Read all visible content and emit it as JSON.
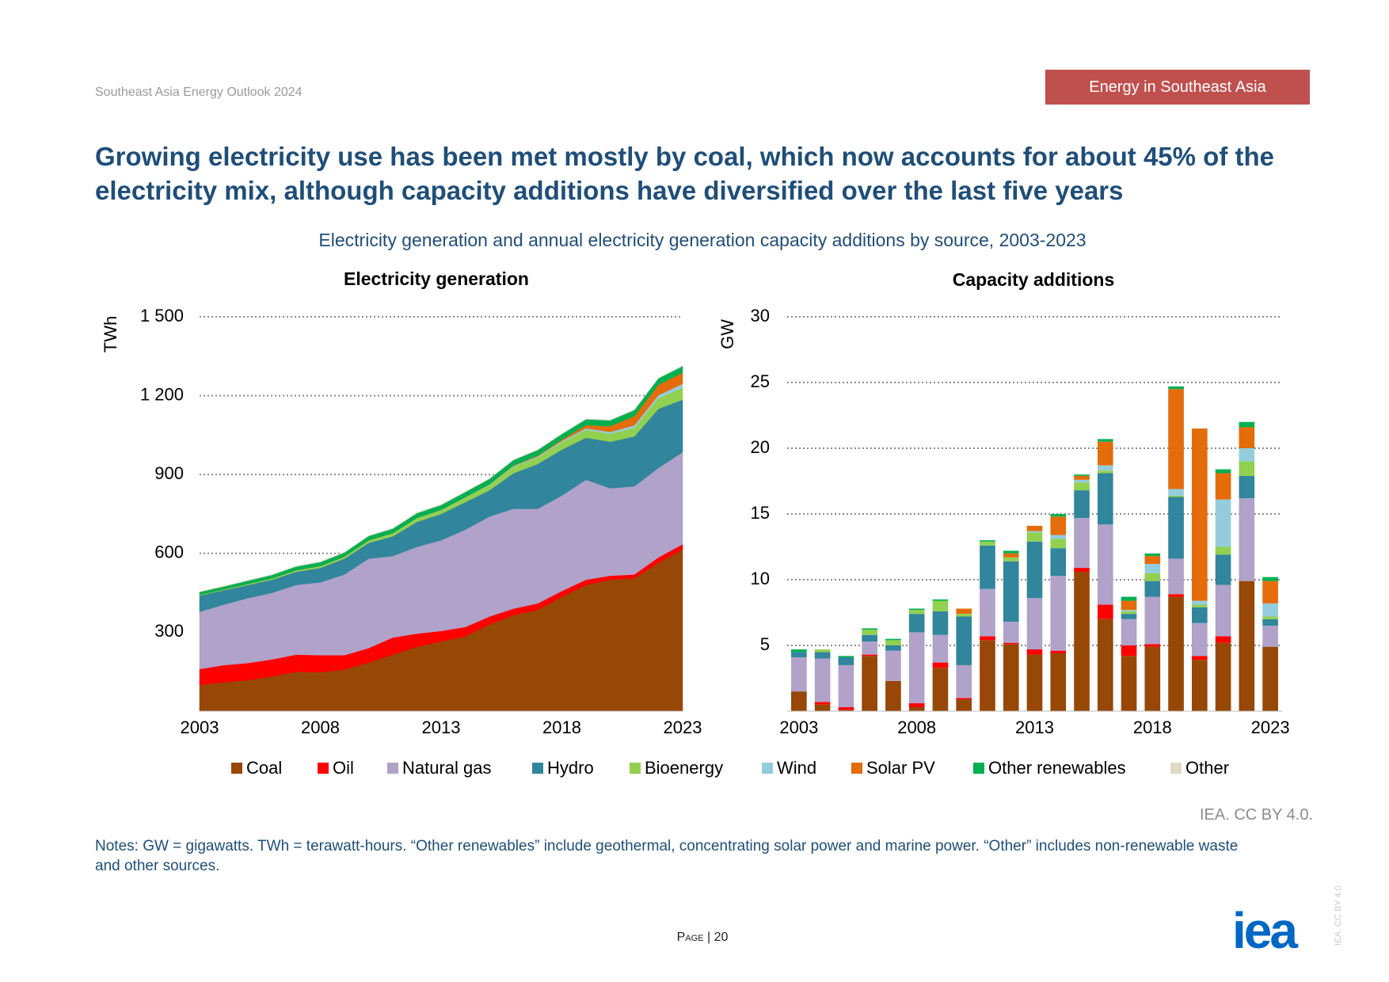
{
  "header": "Southeast Asia Energy Outlook 2024",
  "badge": "Energy in Southeast Asia",
  "title": "Growing electricity use has been met mostly by coal, which now accounts for about 45% of the electricity mix, although capacity additions have diversified over the last five years",
  "subtitle": "Electricity generation and annual electricity generation capacity additions by source, 2003-2023",
  "credit": "IEA. CC BY 4.0.",
  "notes": "Notes: GW = gigawatts. TWh = terawatt-hours. “Other renewables” include geothermal, concentrating solar power and marine power. “Other” includes non-renewable waste and other sources.",
  "page": "Page | 20",
  "logo": "iea",
  "side_credit": "IEA. CC BY 4.0",
  "chart_data": [
    {
      "type": "area",
      "stacked": true,
      "title": "Electricity generation",
      "y_label": "TWh",
      "x": [
        2003,
        2004,
        2005,
        2006,
        2007,
        2008,
        2009,
        2010,
        2011,
        2012,
        2013,
        2014,
        2015,
        2016,
        2017,
        2018,
        2019,
        2020,
        2021,
        2022,
        2023
      ],
      "xlim": [
        2003,
        2023
      ],
      "xticks": [
        2003,
        2008,
        2013,
        2018,
        2023
      ],
      "ylim": [
        0,
        1500
      ],
      "yticks": [
        300,
        600,
        900,
        {
          "value": 1200,
          "label": "1 200"
        },
        {
          "value": 1500,
          "label": "1 500"
        }
      ],
      "grid": true,
      "series": [
        {
          "name": "Coal",
          "color": "#974706",
          "values": [
            100,
            110,
            118,
            132,
            150,
            148,
            158,
            185,
            215,
            245,
            265,
            285,
            330,
            365,
            385,
            435,
            480,
            500,
            505,
            565,
            615
          ]
        },
        {
          "name": "Oil",
          "color": "#ff0000",
          "values": [
            60,
            65,
            65,
            65,
            65,
            65,
            55,
            55,
            65,
            50,
            40,
            35,
            30,
            25,
            25,
            22,
            20,
            15,
            15,
            20,
            20
          ]
        },
        {
          "name": "Natural gas",
          "color": "#b1a2ca",
          "values": [
            218,
            230,
            247,
            253,
            265,
            277,
            307,
            340,
            310,
            330,
            345,
            370,
            380,
            380,
            360,
            363,
            380,
            333,
            335,
            340,
            350
          ]
        },
        {
          "name": "Hydro",
          "color": "#31859c",
          "values": [
            62,
            55,
            50,
            50,
            50,
            55,
            60,
            60,
            75,
            95,
            100,
            105,
            100,
            135,
            170,
            175,
            160,
            177,
            190,
            225,
            200
          ]
        },
        {
          "name": "Bioenergy",
          "color": "#92d050",
          "values": [
            3,
            3,
            4,
            5,
            6,
            7,
            8,
            10,
            12,
            14,
            15,
            18,
            20,
            25,
            25,
            28,
            30,
            30,
            32,
            40,
            45
          ]
        },
        {
          "name": "Wind",
          "color": "#93cddd",
          "values": [
            0,
            0,
            0,
            0,
            0,
            0,
            0,
            0,
            0,
            1,
            1,
            1,
            2,
            3,
            4,
            5,
            6,
            7,
            10,
            12,
            15
          ]
        },
        {
          "name": "Solar PV",
          "color": "#e46c0a",
          "values": [
            0,
            0,
            0,
            0,
            0,
            0,
            0,
            0,
            0,
            0,
            0,
            0,
            1,
            2,
            3,
            5,
            12,
            22,
            35,
            40,
            42
          ]
        },
        {
          "name": "Other renewables",
          "color": "#00b050",
          "values": [
            10,
            11,
            12,
            13,
            14,
            15,
            15,
            16,
            17,
            18,
            18,
            19,
            20,
            20,
            21,
            21,
            22,
            22,
            23,
            24,
            25
          ]
        },
        {
          "name": "Other",
          "color": "#ddd9c3",
          "values": [
            2,
            2,
            2,
            2,
            2,
            2,
            2,
            2,
            2,
            2,
            2,
            2,
            2,
            2,
            2,
            2,
            2,
            2,
            2,
            2,
            2
          ]
        }
      ]
    },
    {
      "type": "bar",
      "stacked": true,
      "title": "Capacity additions",
      "y_label": "GW",
      "categories": [
        "2003",
        null,
        null,
        null,
        null,
        "2008",
        null,
        null,
        null,
        null,
        "2013",
        null,
        null,
        null,
        null,
        "2018",
        null,
        null,
        null,
        null,
        "2023"
      ],
      "ylim": [
        0,
        30
      ],
      "yticks": [
        5,
        10,
        15,
        20,
        25,
        30
      ],
      "grid": true,
      "series": [
        {
          "values": [
            1.5,
            0.5,
            0.1,
            4.2,
            2.3,
            0.3,
            3.3,
            0.9,
            5.4,
            5.1,
            4.3,
            4.4,
            10.6,
            7.0,
            4.2,
            4.9,
            8.7,
            3.9,
            5.2,
            9.9,
            4.9
          ]
        },
        {
          "values": [
            0,
            0.2,
            0.2,
            0.1,
            0,
            0.3,
            0.4,
            0.1,
            0.3,
            0.1,
            0.4,
            0.2,
            0.3,
            1.1,
            0.8,
            0.2,
            0.2,
            0.3,
            0.5,
            0,
            0
          ]
        },
        {
          "values": [
            2.6,
            3.3,
            3.2,
            1.0,
            2.3,
            5.4,
            2.1,
            2.5,
            3.6,
            1.6,
            3.9,
            5.7,
            3.8,
            6.1,
            2.0,
            3.6,
            2.7,
            2.5,
            3.9,
            6.3,
            1.6
          ]
        },
        {
          "values": [
            0.4,
            0.5,
            0.6,
            0.5,
            0.4,
            1.4,
            1.8,
            3.7,
            3.3,
            4.6,
            4.3,
            2.1,
            2.1,
            3.9,
            0.4,
            1.2,
            4.7,
            1.2,
            2.3,
            1.7,
            0.5
          ]
        },
        {
          "values": [
            0,
            0.2,
            0,
            0.4,
            0.4,
            0.3,
            0.8,
            0.2,
            0.3,
            0.3,
            0.7,
            0.7,
            0.6,
            0.2,
            0.2,
            0.6,
            0.1,
            0.2,
            0.6,
            1.1,
            0.2
          ]
        },
        {
          "values": [
            0,
            0,
            0,
            0,
            0,
            0,
            0,
            0,
            0,
            0,
            0.1,
            0.3,
            0.2,
            0.4,
            0.1,
            0.7,
            0.5,
            0.3,
            3.6,
            1.0,
            1.0
          ]
        },
        {
          "values": [
            0,
            0,
            0,
            0,
            0,
            0,
            0,
            0.4,
            0,
            0.3,
            0.4,
            1.4,
            0.3,
            1.8,
            0.7,
            0.6,
            7.6,
            13.1,
            2.0,
            1.6,
            1.7
          ]
        },
        {
          "values": [
            0.2,
            0,
            0.1,
            0.1,
            0.1,
            0.1,
            0.1,
            0,
            0.1,
            0.2,
            0,
            0.2,
            0.1,
            0.2,
            0.3,
            0.2,
            0.2,
            0,
            0.3,
            0.4,
            0.3
          ]
        },
        {
          "values": [
            0,
            0,
            0,
            0,
            0,
            0,
            0,
            0,
            0,
            0,
            0,
            0,
            0,
            0,
            0,
            0,
            0,
            0,
            0,
            0,
            0
          ]
        }
      ]
    }
  ]
}
